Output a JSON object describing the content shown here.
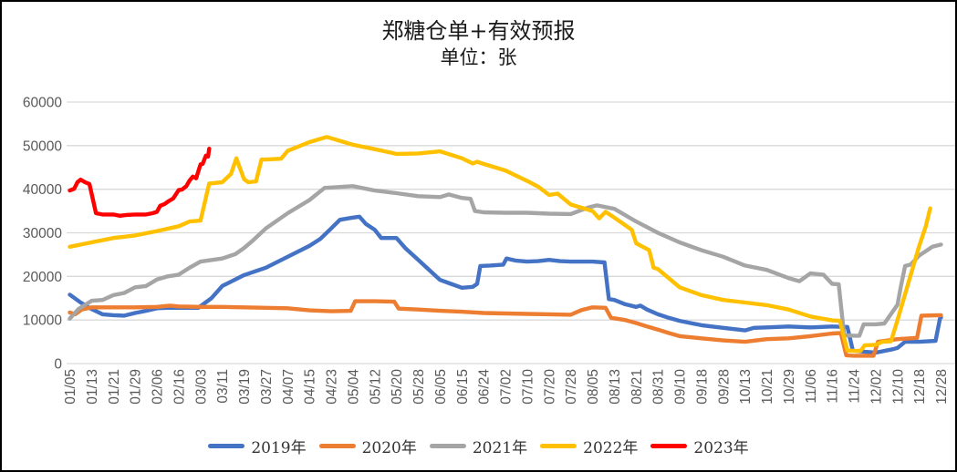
{
  "chart_data": {
    "type": "line",
    "title": "郑糖仓单+有效预报",
    "subtitle": "单位：张",
    "ylabel": "",
    "xlabel": "",
    "ylim": [
      0,
      60000
    ],
    "y_tick_labels": [
      "0",
      "10000",
      "20000",
      "30000",
      "40000",
      "50000",
      "60000"
    ],
    "y_ticks": [
      0,
      10000,
      20000,
      30000,
      40000,
      50000,
      60000
    ],
    "grid": "horizontal",
    "legend_position": "bottom-center",
    "axis_label_color": "#595959",
    "gridline_color": "#D9D9D9",
    "x_tick_labels": [
      "01/05",
      "01/13",
      "01/21",
      "01/29",
      "02/06",
      "02/16",
      "03/03",
      "03/11",
      "03/19",
      "03/27",
      "04/07",
      "04/15",
      "04/23",
      "05/04",
      "05/12",
      "05/20",
      "05/28",
      "06/05",
      "06/15",
      "06/24",
      "07/02",
      "07/10",
      "07/20",
      "07/28",
      "08/05",
      "08/13",
      "08/21",
      "08/31",
      "09/10",
      "09/18",
      "09/28",
      "10/13",
      "10/21",
      "10/29",
      "11/06",
      "11/16",
      "11/24",
      "12/02",
      "12/10",
      "12/18",
      "12/28"
    ],
    "series": [
      {
        "name": "2019年",
        "color": "#4472C4",
        "points": [
          [
            0,
            15800
          ],
          [
            0.5,
            14000
          ],
          [
            1,
            12500
          ],
          [
            1.5,
            11300
          ],
          [
            2,
            11100
          ],
          [
            2.5,
            11000
          ],
          [
            3,
            11600
          ],
          [
            3.5,
            12100
          ],
          [
            4,
            12700
          ],
          [
            4.5,
            12800
          ],
          [
            5,
            12800
          ],
          [
            5.9,
            12800
          ],
          [
            6.5,
            15000
          ],
          [
            7,
            17800
          ],
          [
            8,
            20300
          ],
          [
            9,
            22000
          ],
          [
            10,
            24500
          ],
          [
            11,
            27000
          ],
          [
            11.5,
            28600
          ],
          [
            12,
            31000
          ],
          [
            12.4,
            33000
          ],
          [
            13,
            33500
          ],
          [
            13.3,
            33700
          ],
          [
            13.6,
            32000
          ],
          [
            14,
            30700
          ],
          [
            14.3,
            28800
          ],
          [
            15,
            28800
          ],
          [
            15.4,
            26500
          ],
          [
            16,
            23800
          ],
          [
            16.5,
            21500
          ],
          [
            17,
            19200
          ],
          [
            17.5,
            18300
          ],
          [
            18,
            17400
          ],
          [
            18.5,
            17600
          ],
          [
            18.7,
            18300
          ],
          [
            18.85,
            22400
          ],
          [
            19.3,
            22500
          ],
          [
            19.9,
            22700
          ],
          [
            20.05,
            24100
          ],
          [
            20.5,
            23600
          ],
          [
            21,
            23400
          ],
          [
            21.5,
            23500
          ],
          [
            22,
            23800
          ],
          [
            22.5,
            23500
          ],
          [
            23,
            23400
          ],
          [
            24,
            23400
          ],
          [
            24.55,
            23200
          ],
          [
            24.75,
            14800
          ],
          [
            25,
            14600
          ],
          [
            25.5,
            13600
          ],
          [
            26,
            13000
          ],
          [
            26.2,
            13300
          ],
          [
            26.5,
            12400
          ],
          [
            27,
            11300
          ],
          [
            27.5,
            10500
          ],
          [
            28,
            9800
          ],
          [
            29,
            8800
          ],
          [
            30,
            8200
          ],
          [
            31,
            7600
          ],
          [
            31.4,
            8200
          ],
          [
            32,
            8300
          ],
          [
            33,
            8500
          ],
          [
            34,
            8300
          ],
          [
            35,
            8500
          ],
          [
            35.7,
            8400
          ],
          [
            35.95,
            3000
          ],
          [
            36.5,
            2700
          ],
          [
            37,
            2500
          ],
          [
            37.8,
            3300
          ],
          [
            38,
            3600
          ],
          [
            38.35,
            5000
          ],
          [
            39,
            5000
          ],
          [
            39.75,
            5200
          ],
          [
            39.95,
            10300
          ],
          [
            40,
            10600
          ]
        ]
      },
      {
        "name": "2020年",
        "color": "#ED7D31",
        "points": [
          [
            0,
            11700
          ],
          [
            0.25,
            11300
          ],
          [
            0.55,
            12400
          ],
          [
            1,
            12900
          ],
          [
            2,
            12900
          ],
          [
            3,
            12900
          ],
          [
            4,
            13000
          ],
          [
            4.6,
            13300
          ],
          [
            5,
            13100
          ],
          [
            6,
            13000
          ],
          [
            7,
            13000
          ],
          [
            8,
            12900
          ],
          [
            9,
            12800
          ],
          [
            10,
            12700
          ],
          [
            11,
            12200
          ],
          [
            12,
            12000
          ],
          [
            12.9,
            12100
          ],
          [
            13.1,
            14300
          ],
          [
            14,
            14300
          ],
          [
            14.9,
            14200
          ],
          [
            15.1,
            12600
          ],
          [
            16,
            12400
          ],
          [
            17,
            12100
          ],
          [
            18,
            11900
          ],
          [
            19,
            11600
          ],
          [
            20,
            11500
          ],
          [
            21,
            11400
          ],
          [
            22,
            11300
          ],
          [
            23,
            11200
          ],
          [
            23.5,
            12300
          ],
          [
            24,
            12900
          ],
          [
            24.6,
            12800
          ],
          [
            24.85,
            10500
          ],
          [
            25.5,
            10000
          ],
          [
            26,
            9300
          ],
          [
            26.5,
            8500
          ],
          [
            27,
            7800
          ],
          [
            27.5,
            7000
          ],
          [
            28,
            6300
          ],
          [
            29,
            5800
          ],
          [
            30,
            5300
          ],
          [
            31,
            5000
          ],
          [
            32,
            5600
          ],
          [
            33,
            5800
          ],
          [
            34,
            6300
          ],
          [
            35,
            6900
          ],
          [
            35.4,
            7000
          ],
          [
            35.65,
            1900
          ],
          [
            36,
            1800
          ],
          [
            36.9,
            1800
          ],
          [
            37.1,
            5000
          ],
          [
            38,
            5600
          ],
          [
            38.9,
            5900
          ],
          [
            39.1,
            11000
          ],
          [
            40,
            11100
          ]
        ]
      },
      {
        "name": "2021年",
        "color": "#A5A5A5",
        "points": [
          [
            0,
            10300
          ],
          [
            0.4,
            12500
          ],
          [
            1,
            14400
          ],
          [
            1.5,
            14600
          ],
          [
            2,
            15700
          ],
          [
            2.5,
            16200
          ],
          [
            3,
            17500
          ],
          [
            3.5,
            17800
          ],
          [
            4,
            19300
          ],
          [
            4.5,
            20000
          ],
          [
            5,
            20400
          ],
          [
            5.5,
            22000
          ],
          [
            6,
            23400
          ],
          [
            7,
            24100
          ],
          [
            7.6,
            25100
          ],
          [
            8,
            26500
          ],
          [
            8.35,
            28000
          ],
          [
            9,
            31000
          ],
          [
            10,
            34500
          ],
          [
            11,
            37500
          ],
          [
            11.7,
            40300
          ],
          [
            12,
            40400
          ],
          [
            13,
            40700
          ],
          [
            13.5,
            40200
          ],
          [
            14,
            39700
          ],
          [
            15,
            39100
          ],
          [
            16,
            38400
          ],
          [
            17,
            38200
          ],
          [
            17.4,
            38800
          ],
          [
            18,
            38000
          ],
          [
            18.4,
            37800
          ],
          [
            18.6,
            35000
          ],
          [
            19,
            34700
          ],
          [
            20,
            34600
          ],
          [
            21,
            34600
          ],
          [
            22,
            34400
          ],
          [
            23,
            34300
          ],
          [
            23.8,
            35800
          ],
          [
            24.2,
            36300
          ],
          [
            25,
            35500
          ],
          [
            26,
            32600
          ],
          [
            27,
            30000
          ],
          [
            28,
            27800
          ],
          [
            29,
            26000
          ],
          [
            30,
            24500
          ],
          [
            31,
            22500
          ],
          [
            32,
            21500
          ],
          [
            33,
            19600
          ],
          [
            33.5,
            18900
          ],
          [
            34,
            20700
          ],
          [
            34.6,
            20400
          ],
          [
            35,
            18300
          ],
          [
            35.3,
            18200
          ],
          [
            35.55,
            6500
          ],
          [
            36,
            6400
          ],
          [
            36.25,
            6400
          ],
          [
            36.45,
            9000
          ],
          [
            37,
            9000
          ],
          [
            37.4,
            9200
          ],
          [
            38,
            13500
          ],
          [
            38.15,
            17500
          ],
          [
            38.35,
            22400
          ],
          [
            38.6,
            22700
          ],
          [
            39,
            24800
          ],
          [
            39.6,
            26800
          ],
          [
            40,
            27300
          ]
        ]
      },
      {
        "name": "2022年",
        "color": "#FFC000",
        "points": [
          [
            0,
            26800
          ],
          [
            1,
            27800
          ],
          [
            2,
            28800
          ],
          [
            3,
            29400
          ],
          [
            4,
            30400
          ],
          [
            5,
            31500
          ],
          [
            5.5,
            32600
          ],
          [
            6,
            32800
          ],
          [
            6.4,
            41300
          ],
          [
            7,
            41600
          ],
          [
            7.4,
            43500
          ],
          [
            7.65,
            47100
          ],
          [
            8,
            42300
          ],
          [
            8.2,
            41600
          ],
          [
            8.55,
            41800
          ],
          [
            8.8,
            46800
          ],
          [
            9,
            46800
          ],
          [
            9.7,
            47000
          ],
          [
            10,
            48800
          ],
          [
            11,
            50800
          ],
          [
            11.8,
            52000
          ],
          [
            12,
            51700
          ],
          [
            13,
            50200
          ],
          [
            14,
            49200
          ],
          [
            15,
            48100
          ],
          [
            16,
            48200
          ],
          [
            17,
            48700
          ],
          [
            18,
            47100
          ],
          [
            18.5,
            45900
          ],
          [
            18.7,
            46300
          ],
          [
            19,
            45800
          ],
          [
            20,
            44300
          ],
          [
            21,
            41900
          ],
          [
            21.5,
            40600
          ],
          [
            22,
            38700
          ],
          [
            22.4,
            39000
          ],
          [
            23,
            36500
          ],
          [
            24,
            35000
          ],
          [
            24.3,
            33300
          ],
          [
            24.6,
            34800
          ],
          [
            25,
            33500
          ],
          [
            25.8,
            30700
          ],
          [
            26,
            27600
          ],
          [
            26.6,
            26000
          ],
          [
            26.8,
            22000
          ],
          [
            27,
            21700
          ],
          [
            28,
            17500
          ],
          [
            29,
            15700
          ],
          [
            30,
            14600
          ],
          [
            31,
            14000
          ],
          [
            32,
            13400
          ],
          [
            33,
            12400
          ],
          [
            34,
            10800
          ],
          [
            35,
            9900
          ],
          [
            35.35,
            9800
          ],
          [
            35.7,
            3000
          ],
          [
            36,
            2900
          ],
          [
            36.3,
            2900
          ],
          [
            36.5,
            4200
          ],
          [
            37,
            4300
          ],
          [
            37.3,
            5000
          ],
          [
            37.7,
            5100
          ],
          [
            38,
            10000
          ],
          [
            38.5,
            18500
          ],
          [
            39,
            27000
          ],
          [
            39.3,
            31500
          ],
          [
            39.5,
            35600
          ]
        ]
      },
      {
        "name": "2023年",
        "color": "#FF0000",
        "points": [
          [
            0,
            39700
          ],
          [
            0.2,
            40100
          ],
          [
            0.35,
            41600
          ],
          [
            0.5,
            42200
          ],
          [
            0.7,
            41600
          ],
          [
            0.9,
            41200
          ],
          [
            1,
            39000
          ],
          [
            1.2,
            34500
          ],
          [
            1.5,
            34200
          ],
          [
            2,
            34200
          ],
          [
            2.3,
            33900
          ],
          [
            2.6,
            34100
          ],
          [
            3,
            34200
          ],
          [
            3.5,
            34200
          ],
          [
            3.8,
            34500
          ],
          [
            4,
            34800
          ],
          [
            4.15,
            36200
          ],
          [
            4.35,
            36600
          ],
          [
            4.55,
            37300
          ],
          [
            4.75,
            37900
          ],
          [
            5,
            39800
          ],
          [
            5.15,
            39900
          ],
          [
            5.35,
            40700
          ],
          [
            5.5,
            42000
          ],
          [
            5.65,
            42900
          ],
          [
            5.8,
            42500
          ],
          [
            6,
            45700
          ],
          [
            6.1,
            45800
          ],
          [
            6.25,
            47700
          ],
          [
            6.35,
            47500
          ],
          [
            6.4,
            49300
          ]
        ]
      }
    ]
  }
}
